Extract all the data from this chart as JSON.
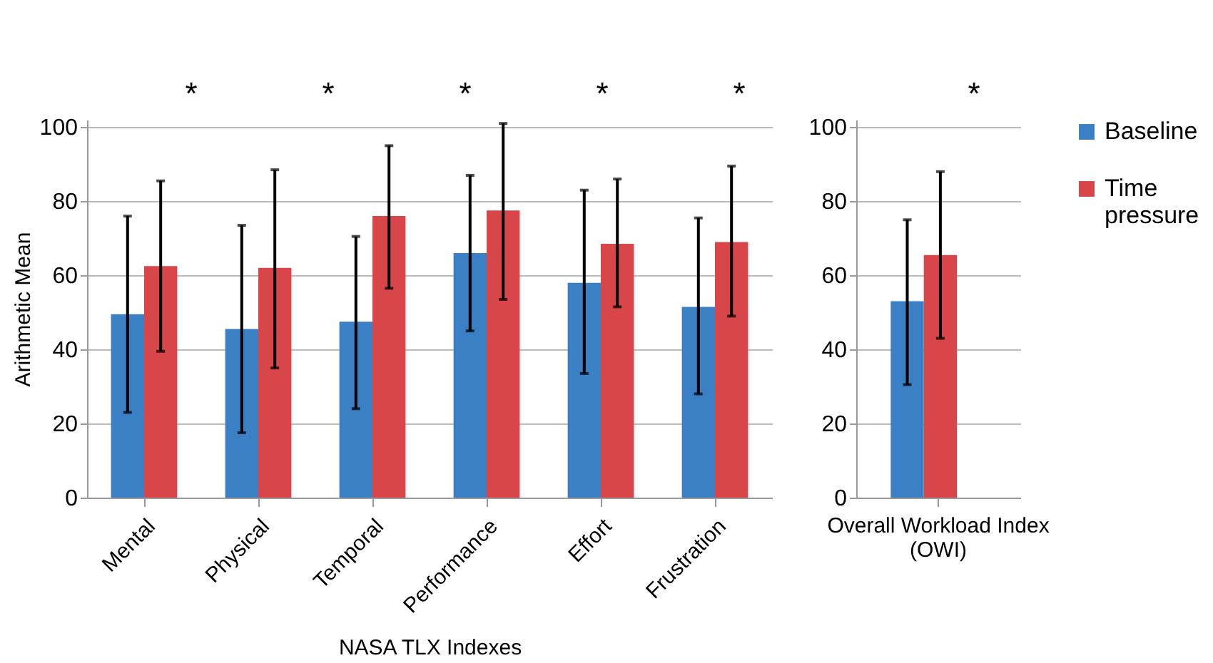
{
  "chart_data": [
    {
      "type": "bar",
      "categories": [
        "Mental",
        "Physical",
        "Temporal",
        "Performance",
        "Effort",
        "Frustration"
      ],
      "xlabel": "NASA TLX Indexes",
      "ylabel": "Arithmetic Mean",
      "ylim": [
        0,
        102
      ],
      "yticks": [
        0,
        20,
        40,
        60,
        80,
        100
      ],
      "grid": "y",
      "legend": "right",
      "series": [
        {
          "name": "Baseline",
          "color": "#3b80c4",
          "values": [
            49.5,
            45.5,
            47.5,
            66,
            58,
            51.5
          ],
          "errors": [
            [
              23,
              76
            ],
            [
              17.5,
              73.5
            ],
            [
              24,
              70.5
            ],
            [
              45,
              87
            ],
            [
              33.5,
              83
            ],
            [
              28,
              75.5
            ]
          ]
        },
        {
          "name": "Time pressure",
          "color": "#d9464a",
          "values": [
            62.5,
            62,
            76,
            77.5,
            68.5,
            69
          ],
          "errors": [
            [
              39.5,
              85.5
            ],
            [
              35,
              88.5
            ],
            [
              56.5,
              95
            ],
            [
              53.5,
              101
            ],
            [
              51.5,
              86
            ],
            [
              49,
              89.5
            ]
          ]
        }
      ],
      "annotations": [
        "*",
        "*",
        "*",
        "*",
        "*"
      ]
    },
    {
      "type": "bar",
      "categories": [
        "Overall Workload Index (OWI)"
      ],
      "ylim": [
        0,
        102
      ],
      "yticks": [
        0,
        20,
        40,
        60,
        80,
        100
      ],
      "grid": "y",
      "legend": "right",
      "series": [
        {
          "name": "Baseline",
          "color": "#3b80c4",
          "values": [
            53
          ],
          "errors": [
            [
              30.5,
              75
            ]
          ]
        },
        {
          "name": "Time pressure",
          "color": "#d9464a",
          "values": [
            65.5
          ],
          "errors": [
            [
              43,
              88
            ]
          ]
        }
      ],
      "annotations": [
        "*"
      ]
    }
  ]
}
